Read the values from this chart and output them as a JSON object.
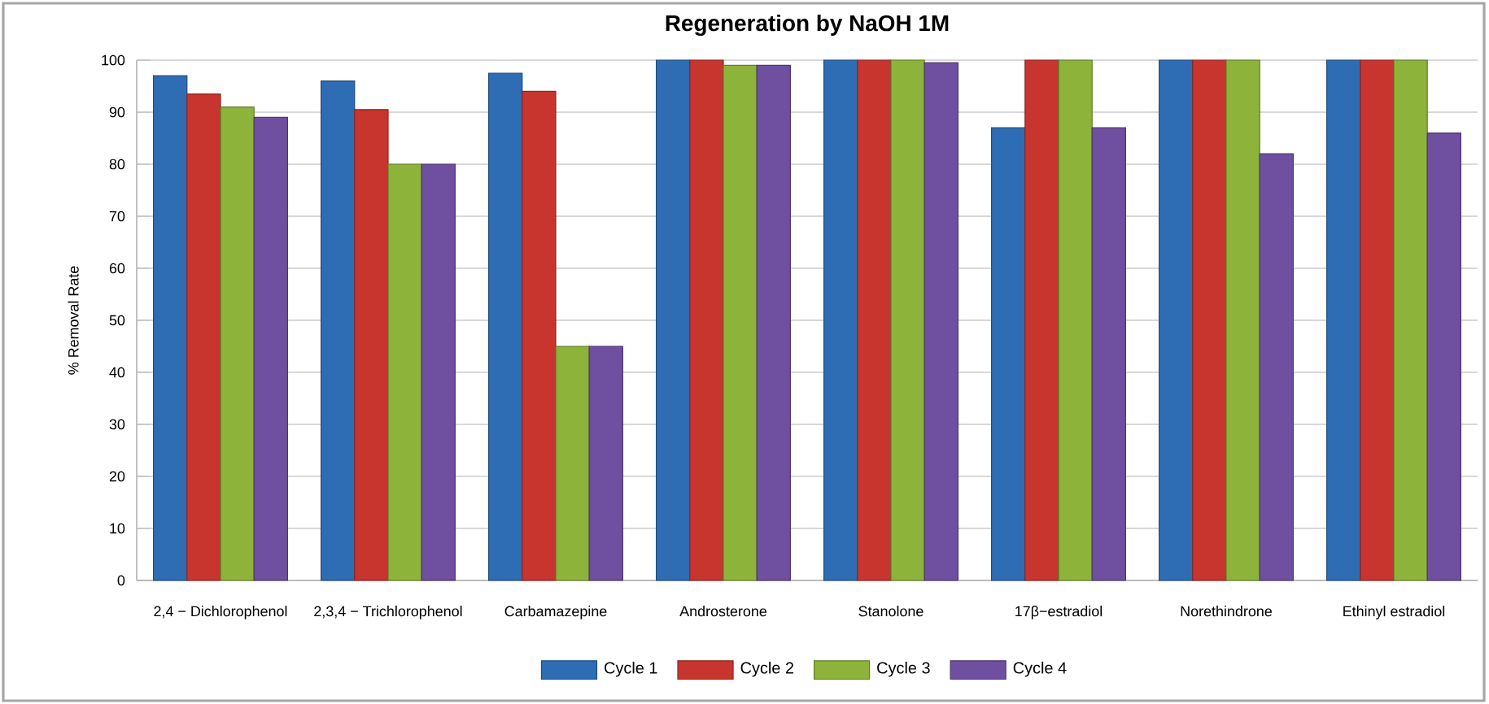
{
  "chart_data": {
    "type": "bar",
    "title": "Regeneration by NaOH 1M",
    "ylabel": "% Removal Rate",
    "categories": [
      "2,4 − Dichlorophenol",
      "2,3,4 − Trichlorophenol",
      "Carbamazepine",
      "Androsterone",
      "Stanolone",
      "17β−estradiol",
      "Norethindrone",
      "Ethinyl estradiol"
    ],
    "series": [
      {
        "name": "Cycle 1",
        "color": "#2e6db4",
        "values": [
          97,
          96,
          97.5,
          100,
          100,
          87,
          100,
          100
        ]
      },
      {
        "name": "Cycle 2",
        "color": "#c8352e",
        "values": [
          93.5,
          90.5,
          94,
          100,
          100,
          100,
          100,
          100
        ]
      },
      {
        "name": "Cycle 3",
        "color": "#8db33a",
        "values": [
          91,
          80,
          45,
          99,
          100,
          100,
          100,
          100
        ]
      },
      {
        "name": "Cycle 4",
        "color": "#6f4fa0",
        "values": [
          89,
          80,
          45,
          99,
          99.5,
          87,
          82,
          86
        ]
      }
    ],
    "ylim": [
      0,
      100
    ],
    "yticks": [
      0,
      10,
      20,
      30,
      40,
      50,
      60,
      70,
      80,
      90,
      100
    ],
    "grid": "y",
    "legend": "bottom"
  }
}
